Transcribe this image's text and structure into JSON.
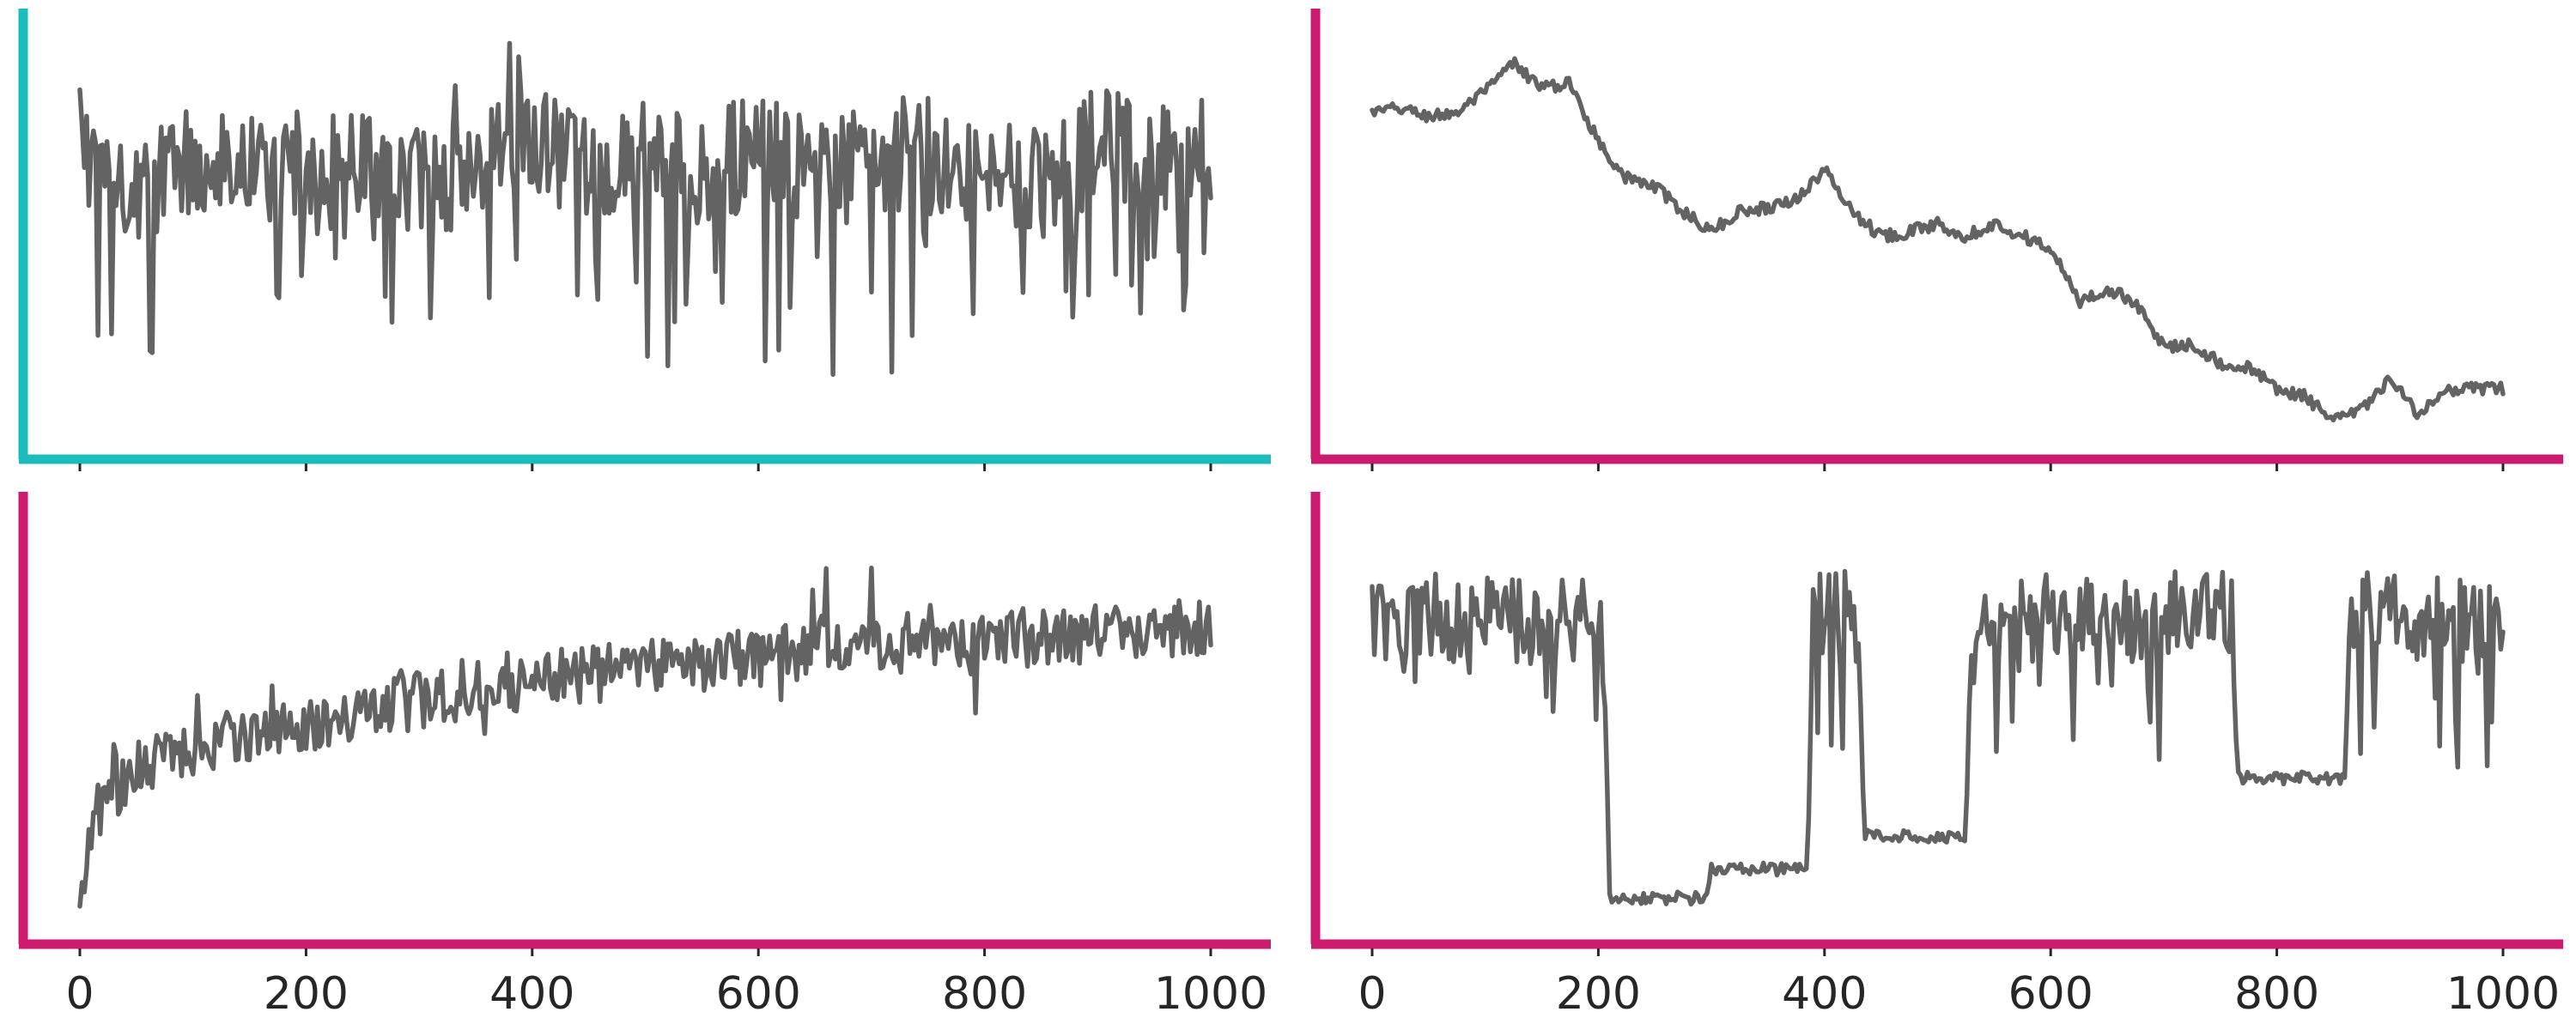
{
  "chart_data": [
    {
      "type": "line",
      "panel": "top-left",
      "spine_color": "#1bbcbc",
      "line_color": "#636363",
      "xlim": [
        0,
        1000
      ],
      "ylim": [
        0,
        1
      ],
      "x_ticks": [
        "0",
        "200",
        "400",
        "600",
        "800",
        "1000"
      ],
      "x_tick_labels_shown": false,
      "pattern": "stationary noise",
      "series": [
        {
          "x": [
            0,
            50,
            100,
            150,
            200,
            250,
            300,
            350,
            400,
            450,
            500,
            550,
            600,
            650,
            700,
            750,
            800,
            850,
            900,
            950,
            1000
          ],
          "values": [
            0.72,
            0.63,
            0.68,
            0.7,
            0.61,
            0.71,
            0.62,
            0.67,
            0.73,
            0.64,
            0.7,
            0.66,
            0.71,
            0.64,
            0.69,
            0.71,
            0.65,
            0.62,
            0.73,
            0.67,
            0.7
          ]
        }
      ]
    },
    {
      "type": "line",
      "panel": "top-right",
      "spine_color": "#cc1a6e",
      "line_color": "#636363",
      "xlim": [
        0,
        1000
      ],
      "ylim": [
        0,
        1
      ],
      "x_ticks": [
        "0",
        "200",
        "400",
        "600",
        "800",
        "1000"
      ],
      "x_tick_labels_shown": false,
      "pattern": "random walk",
      "series": [
        {
          "x": [
            0,
            25,
            50,
            75,
            100,
            125,
            150,
            175,
            200,
            225,
            250,
            275,
            300,
            325,
            350,
            375,
            400,
            425,
            450,
            475,
            500,
            525,
            550,
            575,
            600,
            625,
            650,
            675,
            700,
            725,
            750,
            775,
            800,
            825,
            850,
            875,
            900,
            925,
            950,
            975,
            1000
          ],
          "values": [
            0.8,
            0.81,
            0.79,
            0.8,
            0.85,
            0.92,
            0.86,
            0.87,
            0.73,
            0.64,
            0.62,
            0.56,
            0.51,
            0.56,
            0.57,
            0.59,
            0.66,
            0.56,
            0.5,
            0.51,
            0.53,
            0.5,
            0.53,
            0.5,
            0.47,
            0.34,
            0.37,
            0.34,
            0.23,
            0.24,
            0.19,
            0.18,
            0.13,
            0.11,
            0.05,
            0.08,
            0.15,
            0.07,
            0.12,
            0.13,
            0.13
          ]
        }
      ]
    },
    {
      "type": "line",
      "panel": "bottom-left",
      "spine_color": "#cc1a6e",
      "line_color": "#636363",
      "xlim": [
        0,
        1000
      ],
      "ylim": [
        0,
        1
      ],
      "x_ticks": [
        "0",
        "200",
        "400",
        "600",
        "800",
        "1000"
      ],
      "x_tick_labels_shown": true,
      "pattern": "noisy saturating growth",
      "series": [
        {
          "x": [
            0,
            10,
            30,
            60,
            100,
            150,
            200,
            250,
            300,
            350,
            400,
            450,
            500,
            550,
            600,
            650,
            700,
            750,
            800,
            850,
            900,
            950,
            1000
          ],
          "values": [
            0.05,
            0.26,
            0.33,
            0.4,
            0.43,
            0.47,
            0.48,
            0.52,
            0.55,
            0.57,
            0.6,
            0.61,
            0.63,
            0.64,
            0.65,
            0.67,
            0.68,
            0.68,
            0.7,
            0.7,
            0.71,
            0.72,
            0.73
          ]
        }
      ]
    },
    {
      "type": "line",
      "panel": "bottom-right",
      "spine_color": "#cc1a6e",
      "line_color": "#636363",
      "xlim": [
        0,
        1000
      ],
      "ylim": [
        0,
        1
      ],
      "x_ticks": [
        "0",
        "200",
        "400",
        "600",
        "800",
        "1000"
      ],
      "x_tick_labels_shown": true,
      "pattern": "regime switching",
      "series": [
        {
          "x": [
            0,
            205,
            210,
            295,
            300,
            385,
            390,
            430,
            435,
            525,
            530,
            760,
            765,
            860,
            865,
            1000
          ],
          "values": [
            0.75,
            0.75,
            0.07,
            0.07,
            0.14,
            0.14,
            0.75,
            0.75,
            0.22,
            0.22,
            0.75,
            0.75,
            0.36,
            0.36,
            0.75,
            0.75
          ]
        }
      ]
    }
  ]
}
